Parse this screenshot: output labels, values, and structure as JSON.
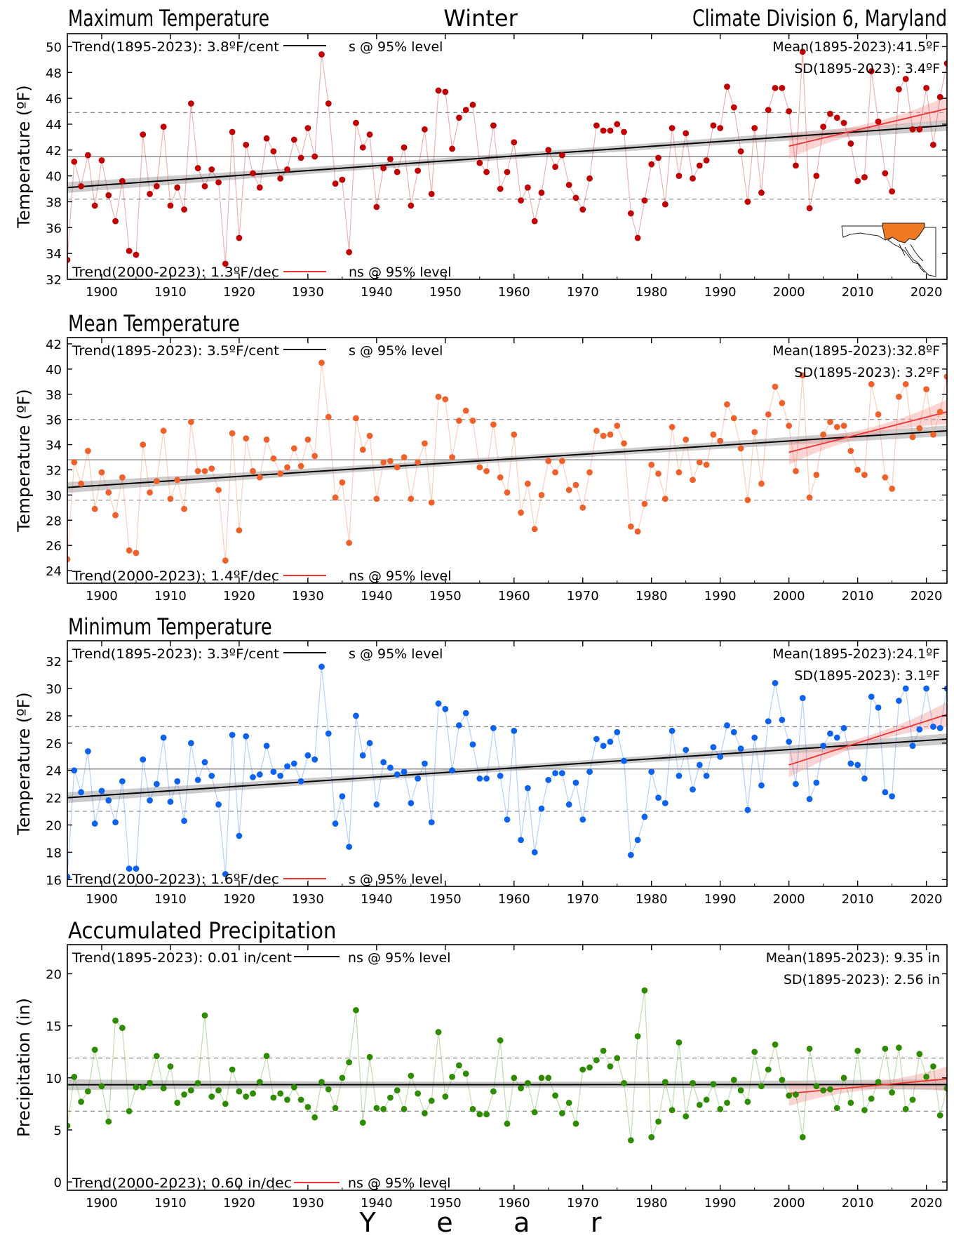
{
  "header": {
    "left": "Maximum Temperature",
    "center": "Winter",
    "right": "Climate Division 6, Maryland"
  },
  "xlabel": "Y e a r",
  "colors": {
    "tmax": "#c00000",
    "tmean": "#f0602a",
    "tmin": "#0c62f0",
    "prcp": "#2e8b00",
    "trend_long": "#000000",
    "trend_recent": "#ee3333",
    "map_fill": "#f07a22"
  },
  "map_icon": "maryland-division-map-icon",
  "chart_data": [
    {
      "type": "line",
      "title": "Maximum Temperature",
      "ylabel": "Temperature (ºF)",
      "xlim": [
        1895,
        2023
      ],
      "ylim": [
        32,
        51
      ],
      "xticks": [
        1900,
        1910,
        1920,
        1930,
        1940,
        1950,
        1960,
        1970,
        1980,
        1990,
        2000,
        2010,
        2020
      ],
      "yticks": [
        32,
        34,
        36,
        38,
        40,
        42,
        44,
        46,
        48,
        50
      ],
      "annotations": {
        "trend_long": "Trend(1895-2023):  3.8ºF/cent",
        "trend_long_sig": "s @ 95% level",
        "trend_recent": "Trend(2000-2023):  1.3ºF/dec",
        "trend_recent_sig": "ns @ 95% level",
        "mean": "Mean(1895-2023):41.5ºF",
        "sd": "SD(1895-2023): 3.4ºF"
      },
      "mean": 41.5,
      "sd_band": [
        38.2,
        44.9
      ],
      "trend_long": {
        "x": [
          1895,
          2023
        ],
        "y": [
          39.1,
          43.9
        ]
      },
      "trend_recent": {
        "x": [
          2000,
          2023
        ],
        "y": [
          42.3,
          45.2
        ]
      },
      "series": [
        {
          "x_start": 1895,
          "values": [
            33.5,
            41.1,
            39.2,
            41.6,
            37.7,
            41.2,
            38.5,
            36.5,
            39.6,
            34.2,
            33.9,
            43.2,
            38.6,
            39.2,
            43.8,
            37.7,
            39.1,
            37.4,
            45.6,
            40.6,
            39.2,
            40.5,
            39.5,
            33.2,
            43.4,
            35.2,
            42.4,
            40.2,
            39.1,
            42.9,
            41.9,
            39.8,
            40.5,
            42.8,
            41.4,
            43.7,
            41.5,
            49.4,
            45.6,
            39.4,
            39.7,
            34.1,
            44.1,
            42.2,
            43.2,
            37.6,
            40.6,
            41.3,
            40.3,
            42.2,
            37.7,
            40.4,
            43.6,
            38.6,
            46.6,
            46.5,
            42.1,
            44.5,
            45.1,
            45.5,
            41.0,
            40.3,
            43.9,
            39.0,
            40.3,
            42.6,
            38.1,
            39.1,
            36.5,
            38.7,
            42.0,
            40.7,
            41.6,
            39.3,
            38.3,
            37.4,
            39.8,
            43.9,
            43.5,
            43.5,
            44.0,
            43.4,
            37.1,
            35.2,
            38.1,
            40.9,
            41.4,
            37.8,
            43.7,
            40.0,
            43.3,
            39.8,
            40.8,
            41.2,
            43.9,
            43.7,
            46.9,
            45.3,
            41.9,
            38.0,
            43.7,
            38.7,
            45.1,
            46.8,
            46.8,
            45.0,
            40.8,
            49.6,
            37.5,
            40.0,
            43.8,
            44.8,
            44.5,
            44.1,
            42.5,
            39.6,
            39.9,
            48.1,
            44.2,
            40.2,
            38.8,
            46.7,
            47.5,
            43.6,
            43.6,
            46.8,
            42.4,
            46.1,
            48.7
          ]
        }
      ]
    },
    {
      "type": "line",
      "title": "Mean Temperature",
      "ylabel": "Temperature (ºF)",
      "xlim": [
        1895,
        2023
      ],
      "ylim": [
        23,
        42.5
      ],
      "xticks": [
        1900,
        1910,
        1920,
        1930,
        1940,
        1950,
        1960,
        1970,
        1980,
        1990,
        2000,
        2010,
        2020
      ],
      "yticks": [
        24,
        26,
        28,
        30,
        32,
        34,
        36,
        38,
        40,
        42
      ],
      "annotations": {
        "trend_long": "Trend(1895-2023):  3.5ºF/cent",
        "trend_long_sig": "s @ 95% level",
        "trend_recent": "Trend(2000-2023):  1.4ºF/dec",
        "trend_recent_sig": "ns @ 95% level",
        "mean": "Mean(1895-2023):32.8ºF",
        "sd": "SD(1895-2023): 3.2ºF"
      },
      "mean": 32.8,
      "sd_band": [
        29.6,
        36.0
      ],
      "trend_long": {
        "x": [
          1895,
          2023
        ],
        "y": [
          30.6,
          35.1
        ]
      },
      "trend_recent": {
        "x": [
          2000,
          2023
        ],
        "y": [
          33.4,
          36.6
        ]
      },
      "series": [
        {
          "x_start": 1895,
          "values": [
            24.9,
            32.6,
            30.9,
            33.5,
            28.9,
            31.8,
            30.2,
            28.4,
            31.4,
            25.6,
            25.4,
            34.0,
            30.2,
            31.1,
            35.1,
            29.7,
            31.2,
            28.9,
            35.8,
            31.9,
            31.9,
            32.1,
            30.4,
            24.8,
            34.9,
            27.2,
            34.5,
            31.9,
            31.4,
            34.4,
            32.9,
            31.7,
            32.2,
            33.7,
            32.3,
            34.4,
            33.1,
            40.5,
            36.2,
            29.8,
            31.0,
            26.2,
            36.1,
            33.6,
            34.7,
            29.7,
            32.6,
            32.7,
            32.2,
            33.0,
            29.7,
            32.6,
            34.1,
            29.4,
            37.8,
            37.6,
            33.0,
            35.9,
            36.7,
            35.9,
            32.2,
            31.9,
            35.6,
            31.4,
            30.2,
            34.8,
            28.6,
            30.9,
            27.3,
            30.0,
            32.7,
            31.8,
            32.7,
            30.4,
            30.8,
            29.0,
            31.8,
            35.1,
            34.7,
            34.8,
            35.5,
            34.1,
            27.5,
            27.1,
            29.3,
            32.4,
            31.7,
            29.7,
            35.4,
            31.8,
            34.4,
            31.2,
            32.6,
            32.4,
            34.8,
            34.3,
            37.2,
            36.1,
            33.7,
            29.6,
            35.0,
            30.9,
            36.4,
            38.6,
            37.3,
            35.5,
            31.9,
            39.5,
            29.8,
            31.6,
            34.8,
            35.8,
            35.4,
            35.5,
            33.5,
            32.0,
            31.6,
            38.8,
            36.4,
            31.4,
            30.5,
            37.8,
            38.8,
            34.6,
            35.3,
            38.4,
            34.8,
            36.6,
            39.4
          ]
        }
      ]
    },
    {
      "type": "line",
      "title": "Minimum Temperature",
      "ylabel": "Temperature (ºF)",
      "xlim": [
        1895,
        2023
      ],
      "ylim": [
        15.5,
        33.5
      ],
      "xticks": [
        1900,
        1910,
        1920,
        1930,
        1940,
        1950,
        1960,
        1970,
        1980,
        1990,
        2000,
        2010,
        2020
      ],
      "yticks": [
        16,
        18,
        20,
        22,
        24,
        26,
        28,
        30,
        32
      ],
      "annotations": {
        "trend_long": "Trend(1895-2023):  3.3ºF/cent",
        "trend_long_sig": "s @ 95% level",
        "trend_recent": "Trend(2000-2023):  1.6ºF/dec",
        "trend_recent_sig": "s @ 95% level",
        "mean": "Mean(1895-2023):24.1ºF",
        "sd": "SD(1895-2023): 3.1ºF"
      },
      "mean": 24.1,
      "sd_band": [
        21.0,
        27.2
      ],
      "trend_long": {
        "x": [
          1895,
          2023
        ],
        "y": [
          22.0,
          26.3
        ]
      },
      "trend_recent": {
        "x": [
          2000,
          2023
        ],
        "y": [
          24.4,
          28.1
        ]
      },
      "series": [
        {
          "x_start": 1895,
          "values": [
            16.2,
            24.0,
            22.4,
            25.4,
            20.1,
            22.5,
            21.8,
            20.2,
            23.2,
            16.8,
            16.8,
            24.8,
            21.8,
            23.0,
            26.4,
            21.7,
            23.2,
            20.3,
            26.0,
            23.3,
            24.6,
            23.6,
            21.5,
            16.4,
            26.6,
            19.2,
            26.5,
            23.5,
            23.7,
            25.8,
            23.9,
            23.6,
            24.3,
            24.5,
            23.2,
            25.1,
            24.8,
            31.6,
            26.7,
            20.1,
            22.1,
            18.4,
            28.0,
            25.1,
            26.0,
            21.5,
            24.6,
            24.2,
            23.7,
            23.9,
            21.6,
            23.4,
            24.5,
            20.2,
            28.9,
            28.5,
            24.0,
            27.3,
            28.2,
            25.9,
            23.4,
            23.4,
            27.1,
            23.6,
            20.4,
            26.9,
            18.9,
            22.7,
            18.0,
            21.2,
            23.3,
            23.8,
            23.8,
            21.5,
            23.1,
            20.4,
            23.9,
            26.3,
            25.8,
            26.1,
            26.8,
            24.7,
            17.8,
            18.9,
            20.6,
            23.9,
            22.0,
            21.6,
            26.9,
            23.6,
            25.5,
            22.6,
            24.4,
            23.6,
            25.7,
            25.0,
            27.3,
            26.8,
            25.6,
            21.1,
            26.4,
            22.9,
            27.6,
            30.4,
            27.7,
            26.1,
            23.0,
            29.3,
            21.9,
            23.1,
            25.8,
            26.7,
            26.4,
            27.1,
            24.5,
            24.4,
            23.4,
            29.4,
            28.6,
            22.4,
            22.1,
            29.1,
            30.0,
            25.8,
            27.0,
            30.0,
            27.2,
            27.1,
            30.0
          ]
        }
      ]
    },
    {
      "type": "line",
      "title": "Accumulated Precipitation",
      "ylabel": "Precipitation (in)",
      "xlim": [
        1895,
        2023
      ],
      "ylim": [
        -0.8,
        22.8
      ],
      "xticks": [
        1900,
        1910,
        1920,
        1930,
        1940,
        1950,
        1960,
        1970,
        1980,
        1990,
        2000,
        2010,
        2020
      ],
      "yticks": [
        0,
        5,
        10,
        15,
        20
      ],
      "annotations": {
        "trend_long": "Trend(1895-2023):  0.01 in/cent",
        "trend_long_sig": "ns @ 95% level",
        "trend_recent": "Trend(2000-2023):  0.60 in/dec",
        "trend_recent_sig": "ns @ 95% level",
        "mean": "Mean(1895-2023): 9.35 in",
        "sd": "SD(1895-2023): 2.56 in"
      },
      "mean": 9.35,
      "sd_band": [
        6.8,
        11.9
      ],
      "trend_long": {
        "x": [
          1895,
          2023
        ],
        "y": [
          9.34,
          9.36
        ]
      },
      "trend_recent": {
        "x": [
          2000,
          2023
        ],
        "y": [
          8.5,
          9.9
        ]
      },
      "series": [
        {
          "x_start": 1895,
          "values": [
            5.4,
            10.1,
            7.7,
            8.7,
            12.7,
            9.2,
            5.8,
            15.5,
            14.8,
            6.8,
            9.1,
            9.1,
            9.5,
            12.1,
            9.0,
            11.1,
            7.6,
            8.4,
            8.8,
            9.5,
            16.0,
            8.2,
            8.8,
            7.5,
            10.8,
            8.7,
            8.2,
            8.5,
            9.6,
            12.1,
            8.1,
            8.5,
            7.9,
            9.1,
            7.9,
            7.2,
            6.2,
            9.6,
            8.9,
            7.1,
            10.0,
            11.5,
            16.5,
            5.7,
            12.0,
            7.1,
            7.0,
            8.1,
            8.8,
            7.0,
            10.2,
            8.5,
            6.6,
            7.8,
            14.4,
            8.2,
            10.1,
            11.2,
            10.4,
            7.0,
            6.5,
            6.5,
            8.7,
            13.6,
            5.6,
            10.0,
            9.0,
            9.5,
            6.7,
            10.0,
            10.0,
            8.3,
            6.6,
            7.6,
            5.6,
            10.8,
            11.0,
            11.7,
            12.6,
            11.1,
            11.9,
            9.5,
            4.0,
            14.0,
            18.4,
            4.3,
            5.8,
            9.6,
            6.9,
            13.4,
            6.3,
            9.5,
            7.4,
            7.9,
            9.4,
            7.0,
            7.6,
            9.8,
            8.8,
            7.7,
            12.5,
            9.2,
            10.8,
            13.2,
            9.8,
            8.3,
            8.4,
            4.3,
            12.8,
            9.2,
            8.8,
            8.9,
            7.1,
            10.0,
            7.6,
            12.6,
            6.9,
            8.0,
            9.6,
            12.8,
            8.6,
            12.9,
            7.0,
            7.9,
            12.3,
            10.1,
            11.1,
            6.4,
            9.0
          ]
        }
      ]
    }
  ]
}
